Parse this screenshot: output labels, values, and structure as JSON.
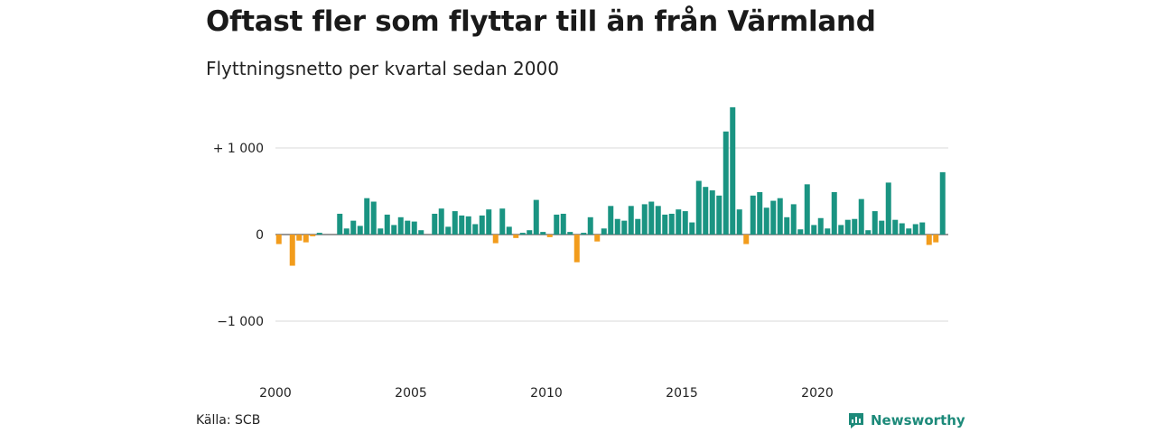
{
  "header": {
    "title": "Oftast fler som flyttar till än från Värmland",
    "subtitle": "Flyttningsnetto per kvartal sedan 2000"
  },
  "footer": {
    "source": "Källa: SCB",
    "brand": "Newsworthy",
    "brand_icon": "chart-logo-icon"
  },
  "colors": {
    "positive": "#1a9482",
    "negative": "#f29c1c",
    "grid": "#d9d9d9",
    "brand": "#1d8a7a"
  },
  "chart_data": {
    "type": "bar",
    "title": "Oftast fler som flyttar till än från Värmland",
    "subtitle": "Flyttningsnetto per kvartal sedan 2000",
    "xlabel": "",
    "ylabel": "",
    "ylim": [
      -1400,
      1500
    ],
    "grid": true,
    "y_ticks": [
      {
        "value": 1000,
        "label": "+ 1 000"
      },
      {
        "value": 0,
        "label": "0"
      },
      {
        "value": -1000,
        "label": "−1 000"
      }
    ],
    "x_ticks": [
      {
        "value": "2000",
        "label": "2000"
      },
      {
        "value": "2005",
        "label": "2005"
      },
      {
        "value": "2010",
        "label": "2010"
      },
      {
        "value": "2015",
        "label": "2015"
      },
      {
        "value": "2020",
        "label": "2020"
      }
    ],
    "start_year": 2000,
    "values": [
      -110,
      0,
      -360,
      -70,
      -90,
      -20,
      20,
      0,
      0,
      240,
      70,
      160,
      100,
      420,
      380,
      70,
      230,
      110,
      200,
      160,
      150,
      50,
      0,
      240,
      300,
      90,
      270,
      220,
      210,
      120,
      220,
      290,
      -100,
      300,
      90,
      -40,
      20,
      50,
      400,
      30,
      -30,
      230,
      240,
      30,
      -320,
      20,
      200,
      -80,
      70,
      330,
      180,
      160,
      330,
      180,
      350,
      380,
      330,
      230,
      240,
      290,
      270,
      140,
      620,
      550,
      510,
      450,
      1190,
      1470,
      290,
      -110,
      450,
      490,
      310,
      390,
      420,
      200,
      350,
      60,
      580,
      110,
      190,
      70,
      490,
      110,
      170,
      180,
      410,
      50,
      270,
      160,
      600,
      170,
      130,
      70,
      120,
      140,
      -120,
      -90,
      720
    ]
  }
}
